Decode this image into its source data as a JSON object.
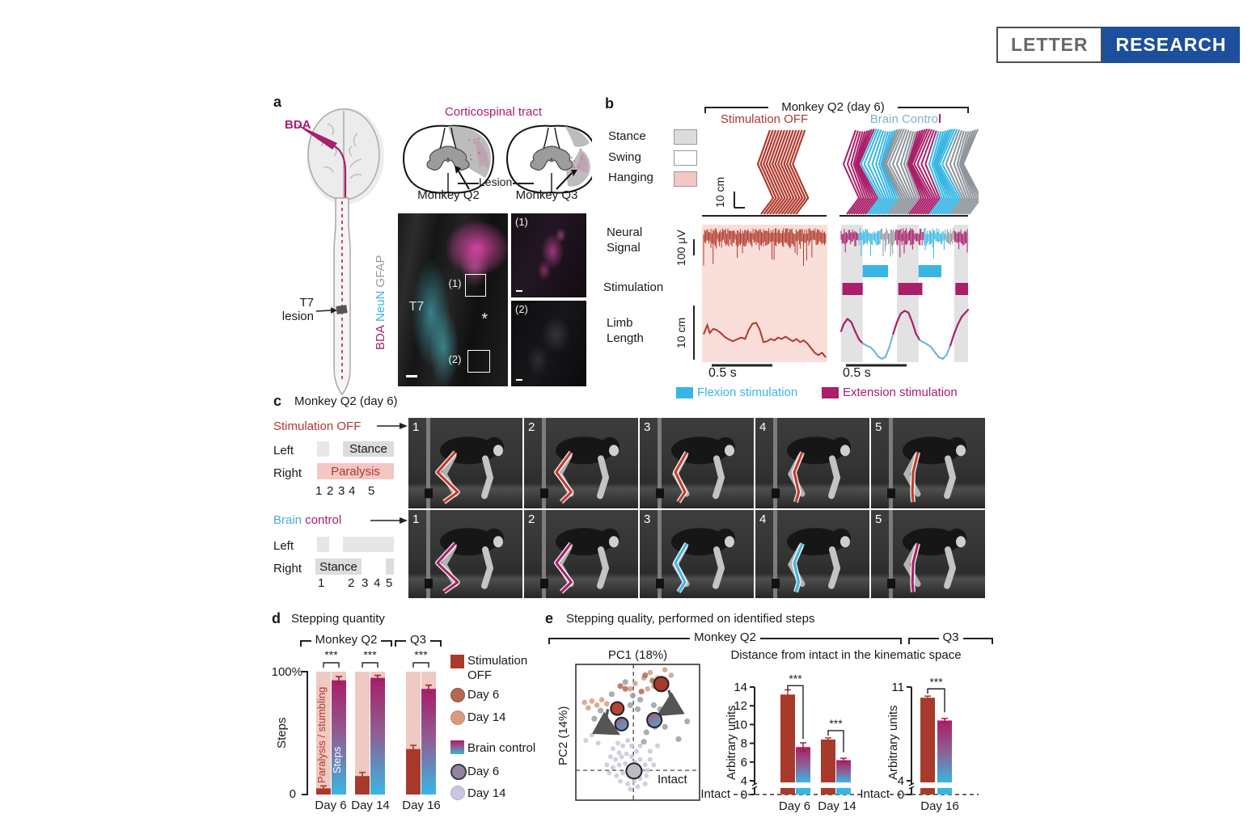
{
  "banner": {
    "letter": "LETTER",
    "research": "RESEARCH"
  },
  "colors": {
    "dark_red": "#b03a2e",
    "bar_red": "#a83a2c",
    "magenta": "#aa1f6a",
    "cyan": "#38b6e3",
    "gray_seg": "#8e959b",
    "pink_bg": "#f9ded9",
    "pink_box": "#f3c7c3",
    "stance_gray": "#dcdcdc",
    "band_gray": "#e2e2e2",
    "banner_blue": "#1c4f9c",
    "overlay_red": "#c3392c",
    "salmon": "#d89a83",
    "brown": "#b06a52",
    "lavender": "#c9c6dd",
    "purple_gray": "#94849f"
  },
  "panel_a": {
    "label": "a",
    "bda": "BDA",
    "cst_title": "Corticospinal tract",
    "monkey_q2": "Monkey Q2",
    "monkey_q3": "Monkey Q3",
    "lesion_label": "Lesion",
    "t7_line1": "T7",
    "t7_line2": "lesion",
    "stain_bda": "BDA",
    "stain_neun": "NeuN",
    "stain_gfap": "GFAP",
    "tissue_t7": "T7",
    "asterisk": "*",
    "box1": "(1)",
    "box2": "(2)",
    "inset1": "(1)",
    "inset2": "(2)"
  },
  "panel_b": {
    "label": "b",
    "title": "Monkey Q2 (day 6)",
    "col_off": "Stimulation OFF",
    "col_bc_part1": "Brain Contro",
    "col_bc_part2": "l",
    "gait_legend": [
      {
        "label": "Stance"
      },
      {
        "label": "Swing"
      },
      {
        "label": "Hanging"
      }
    ],
    "scale_stick": "10 cm",
    "scale_uv": "100 μV",
    "scale_cm": "10 cm",
    "row_neural_1": "Neural",
    "row_neural_2": "Signal",
    "row_stim": "Stimulation",
    "row_limb_1": "Limb",
    "row_limb_2": "Length",
    "scale_time_left": "0.5 s",
    "scale_time_right": "0.5 s",
    "legend_flexion": "Flexion stimulation",
    "legend_extension": "Extension stimulation",
    "stance_bands": [
      [
        0,
        0.17
      ],
      [
        0.44,
        0.61
      ],
      [
        0.89,
        1
      ]
    ],
    "neural_bounds": [
      0,
      0.14,
      0.31,
      0.43,
      0.65,
      0.82,
      0.89,
      1
    ],
    "neural_colors": [
      "magenta",
      "cyan",
      "gray_seg",
      "magenta",
      "cyan",
      "gray_seg",
      "magenta"
    ],
    "stim_cyan": [
      [
        0.17,
        0.37
      ],
      [
        0.61,
        0.79
      ]
    ],
    "stim_magenta": [
      [
        0.01,
        0.17
      ],
      [
        0.45,
        0.64
      ],
      [
        0.9,
        1
      ]
    ],
    "stick_right_groups": [
      "magenta",
      "cyan",
      "gray_seg",
      "magenta",
      "cyan",
      "gray_seg"
    ],
    "limb_left": [
      [
        0,
        0.45
      ],
      [
        0.03,
        0.25
      ],
      [
        0.05,
        0.42
      ],
      [
        0.08,
        0.33
      ],
      [
        0.11,
        0.36
      ],
      [
        0.14,
        0.42
      ],
      [
        0.17,
        0.5
      ],
      [
        0.2,
        0.55
      ],
      [
        0.24,
        0.6
      ],
      [
        0.28,
        0.55
      ],
      [
        0.31,
        0.52
      ],
      [
        0.34,
        0.55
      ],
      [
        0.37,
        0.35
      ],
      [
        0.4,
        0.22
      ],
      [
        0.43,
        0.2
      ],
      [
        0.46,
        0.35
      ],
      [
        0.49,
        0.62
      ],
      [
        0.52,
        0.6
      ],
      [
        0.55,
        0.55
      ],
      [
        0.58,
        0.58
      ],
      [
        0.61,
        0.52
      ],
      [
        0.64,
        0.55
      ],
      [
        0.67,
        0.5
      ],
      [
        0.7,
        0.55
      ],
      [
        0.73,
        0.6
      ],
      [
        0.76,
        0.55
      ],
      [
        0.79,
        0.62
      ],
      [
        0.82,
        0.58
      ],
      [
        0.85,
        0.65
      ],
      [
        0.88,
        0.75
      ],
      [
        0.91,
        0.85
      ],
      [
        0.94,
        0.9
      ],
      [
        0.97,
        0.85
      ],
      [
        1,
        0.95
      ]
    ],
    "limb_right": [
      [
        0,
        0.45
      ],
      [
        0.02,
        0.32
      ],
      [
        0.05,
        0.22
      ],
      [
        0.08,
        0.28
      ],
      [
        0.11,
        0.45
      ],
      [
        0.14,
        0.6
      ],
      [
        0.17,
        0.68
      ],
      [
        0.2,
        0.72
      ],
      [
        0.23,
        0.75
      ],
      [
        0.26,
        0.82
      ],
      [
        0.29,
        0.92
      ],
      [
        0.32,
        0.97
      ],
      [
        0.35,
        0.93
      ],
      [
        0.38,
        0.75
      ],
      [
        0.41,
        0.5
      ],
      [
        0.44,
        0.28
      ],
      [
        0.47,
        0.12
      ],
      [
        0.5,
        0.07
      ],
      [
        0.53,
        0.1
      ],
      [
        0.56,
        0.28
      ],
      [
        0.59,
        0.5
      ],
      [
        0.62,
        0.62
      ],
      [
        0.65,
        0.66
      ],
      [
        0.68,
        0.7
      ],
      [
        0.71,
        0.75
      ],
      [
        0.74,
        0.85
      ],
      [
        0.77,
        0.94
      ],
      [
        0.8,
        0.97
      ],
      [
        0.83,
        0.9
      ],
      [
        0.86,
        0.72
      ],
      [
        0.89,
        0.5
      ],
      [
        0.92,
        0.32
      ],
      [
        0.95,
        0.18
      ],
      [
        0.98,
        0.1
      ],
      [
        1,
        0.05
      ]
    ],
    "limb_right_cyan_ranges": [
      [
        0.18,
        0.4
      ],
      [
        0.62,
        0.87
      ]
    ]
  },
  "panel_c": {
    "label": "c",
    "title": "Monkey Q2 (day 6)",
    "off_title": "Stimulation OFF",
    "bc_title_1": "Brain ",
    "bc_title_2": "control",
    "left1": "Left",
    "right1": "Right",
    "stance1": "Stance",
    "paralysis": "Paralysis",
    "left2": "Left",
    "right2": "Right",
    "stance2": "Stance",
    "off_nums": [
      "1",
      "2",
      "3",
      "4",
      "5"
    ],
    "bc_nums": [
      "1",
      "2",
      "3",
      "4",
      "5"
    ],
    "frame_nums": [
      "1",
      "2",
      "3",
      "4",
      "5"
    ],
    "top_overlay_colors": [
      "overlay_red",
      "overlay_red",
      "overlay_red",
      "overlay_red",
      "overlay_red"
    ],
    "bottom_overlay_colors": [
      "magenta",
      "magenta",
      "cyan",
      "cyan",
      "magenta"
    ]
  },
  "panel_d": {
    "label": "d",
    "title": "Stepping quantity",
    "bracket_q2": "Monkey Q2",
    "bracket_q3": "Q3",
    "y_top": "100%",
    "y_bottom": "0",
    "ylabel": "Steps",
    "bar_text_paralysis": "Paralysis / stumbling",
    "bar_text_steps": "Steps",
    "x_labels": [
      "Day 6",
      "Day 14",
      "Day 16"
    ],
    "legend": {
      "off1": "Stimulation",
      "off2": "OFF",
      "off_day6": "Day 6",
      "off_day14": "Day 14",
      "bc": "Brain control",
      "bc_day6": "Day 6",
      "bc_day14": "Day 14"
    }
  },
  "panel_e": {
    "label": "e",
    "title": "Stepping quality, performed on identified steps",
    "bracket_q2": "Monkey Q2",
    "bracket_q3": "Q3",
    "pc1": "PC1 (18%)",
    "pc2": "PC2 (14%)",
    "intact_scatter": "Intact",
    "dist_title": "Distance from intact in the kinematic space",
    "arbitrary_units_q2": "Arbitrary units",
    "arbitrary_units_q3": "Arbitrary units",
    "intact_q2": "Intact",
    "intact_q3": "Intact",
    "zero_q2": "0",
    "zero_q3": "0",
    "q2_xlabels": [
      "Day 6",
      "Day 14"
    ],
    "q3_xlabel": "Day 16"
  },
  "chart_data": [
    {
      "id": "panel_d_bar",
      "type": "bar",
      "title": "Stepping quantity",
      "ylabel": "Steps",
      "ylim": [
        0,
        100
      ],
      "yticks": [
        "0",
        "100%"
      ],
      "categories": [
        "Day 6",
        "Day 14",
        "Day 16"
      ],
      "series": [
        {
          "name": "Stimulation OFF (steps %)",
          "values": [
            5,
            15,
            37
          ],
          "errors": [
            2,
            3,
            3
          ]
        },
        {
          "name": "Brain control (steps %)",
          "values": [
            93,
            95,
            86
          ],
          "errors": [
            3,
            2,
            3
          ]
        }
      ],
      "significance": [
        "***",
        "***",
        "***"
      ],
      "brackets": {
        "Monkey Q2": [
          "Day 6",
          "Day 14"
        ],
        "Q3": [
          "Day 16"
        ]
      },
      "annotations": [
        "Paralysis / stumbling",
        "Steps"
      ]
    },
    {
      "id": "panel_e_pca",
      "type": "scatter",
      "title": "PC1 (18%)",
      "xlabel": "PC1 (18%)",
      "ylabel": "PC2 (14%)",
      "clusters": [
        {
          "name": "intact-steps",
          "color": "#c9c6dd",
          "r": 3,
          "points": [
            [
              0.3,
              0.62
            ],
            [
              0.34,
              0.58
            ],
            [
              0.38,
              0.6
            ],
            [
              0.42,
              0.56
            ],
            [
              0.45,
              0.6
            ],
            [
              0.35,
              0.65
            ],
            [
              0.28,
              0.68
            ],
            [
              0.32,
              0.7
            ],
            [
              0.37,
              0.68
            ],
            [
              0.41,
              0.66
            ],
            [
              0.45,
              0.68
            ],
            [
              0.49,
              0.64
            ],
            [
              0.52,
              0.6
            ],
            [
              0.25,
              0.74
            ],
            [
              0.3,
              0.76
            ],
            [
              0.35,
              0.74
            ],
            [
              0.4,
              0.73
            ],
            [
              0.44,
              0.76
            ],
            [
              0.48,
              0.72
            ],
            [
              0.52,
              0.7
            ],
            [
              0.56,
              0.74
            ],
            [
              0.6,
              0.7
            ],
            [
              0.27,
              0.8
            ],
            [
              0.33,
              0.82
            ],
            [
              0.38,
              0.8
            ],
            [
              0.43,
              0.82
            ],
            [
              0.48,
              0.8
            ],
            [
              0.53,
              0.78
            ],
            [
              0.58,
              0.78
            ],
            [
              0.63,
              0.74
            ],
            [
              0.36,
              0.86
            ],
            [
              0.42,
              0.88
            ],
            [
              0.47,
              0.86
            ],
            [
              0.52,
              0.84
            ],
            [
              0.57,
              0.82
            ],
            [
              0.44,
              0.92
            ],
            [
              0.5,
              0.9
            ],
            [
              0.56,
              0.88
            ],
            [
              0.08,
              0.56
            ],
            [
              0.13,
              0.52
            ],
            [
              0.18,
              0.58
            ],
            [
              0.6,
              0.64
            ],
            [
              0.66,
              0.6
            ]
          ]
        },
        {
          "name": "gray-steps",
          "color": "#9aa0a8",
          "r": 3.6,
          "points": [
            [
              0.4,
              0.13
            ],
            [
              0.29,
              0.22
            ],
            [
              0.52,
              0.26
            ],
            [
              0.63,
              0.3
            ],
            [
              0.68,
              0.33
            ],
            [
              0.66,
              0.4
            ],
            [
              0.64,
              0.46
            ],
            [
              0.6,
              0.44
            ],
            [
              0.57,
              0.5
            ],
            [
              0.9,
              0.42
            ],
            [
              0.83,
              0.55
            ],
            [
              0.15,
              0.4
            ],
            [
              0.2,
              0.34
            ],
            [
              0.46,
              0.23
            ],
            [
              0.5,
              0.33
            ],
            [
              0.44,
              0.3
            ],
            [
              0.72,
              0.46
            ],
            [
              0.55,
              0.57
            ]
          ]
        },
        {
          "name": "off-day14-steps",
          "color": "#d89a83",
          "r": 3.3,
          "points": [
            [
              0.13,
              0.27
            ],
            [
              0.17,
              0.3
            ],
            [
              0.21,
              0.26
            ],
            [
              0.25,
              0.29
            ],
            [
              0.1,
              0.32
            ],
            [
              0.44,
              0.18
            ],
            [
              0.48,
              0.14
            ],
            [
              0.55,
              0.1
            ],
            [
              0.6,
              0.06
            ],
            [
              0.66,
              0.1
            ],
            [
              0.72,
              0.04
            ],
            [
              0.63,
              0.16
            ],
            [
              0.7,
              0.14
            ],
            [
              0.58,
              0.18
            ],
            [
              0.07,
              0.28
            ],
            [
              0.77,
              0.08
            ]
          ]
        },
        {
          "name": "off-day6-steps",
          "color": "#b06a52",
          "r": 3.6,
          "points": [
            [
              0.36,
              0.16
            ],
            [
              0.4,
              0.18
            ],
            [
              0.56,
              0.08
            ],
            [
              0.62,
              0.12
            ],
            [
              0.53,
              0.2
            ]
          ]
        }
      ],
      "centroids": [
        {
          "name": "stim-off-day6",
          "color": "#a83a2c",
          "x": 0.69,
          "y": 0.145,
          "r": 9
        },
        {
          "name": "stim-off-day14",
          "color": "#b8432f",
          "x": 0.335,
          "y": 0.325,
          "r": 8
        },
        {
          "name": "brain-control-day6",
          "gradient": true,
          "x": 0.635,
          "y": 0.41,
          "r": 9
        },
        {
          "name": "brain-control-day14",
          "gradient": true,
          "x": 0.37,
          "y": 0.44,
          "r": 8
        },
        {
          "name": "intact",
          "color": "#b9bcc0",
          "x": 0.47,
          "y": 0.785,
          "r": 9.5,
          "label": "Intact"
        }
      ],
      "arrows": [
        {
          "from": [
            0.75,
            0.19
          ],
          "ctrl": [
            0.8,
            0.3
          ],
          "to": [
            0.69,
            0.36
          ]
        },
        {
          "from": [
            0.26,
            0.33
          ],
          "ctrl": [
            0.22,
            0.45
          ],
          "to": [
            0.32,
            0.5
          ]
        }
      ]
    },
    {
      "id": "panel_e_q2",
      "type": "bar",
      "title": "Distance from intact in the kinematic space",
      "ylabel": "Arbitrary units",
      "ylim": [
        0,
        14
      ],
      "axis_break": [
        0,
        4
      ],
      "yticks": [
        14,
        12,
        10,
        8,
        6,
        4,
        0
      ],
      "categories": [
        "Day 6",
        "Day 14"
      ],
      "series": [
        {
          "name": "Stimulation OFF",
          "values": [
            13.2,
            8.4
          ],
          "errors": [
            0.5,
            0.15
          ]
        },
        {
          "name": "Brain control",
          "values": [
            7.6,
            6.2
          ],
          "errors": [
            0.45,
            0.2
          ]
        }
      ],
      "significance": [
        "***",
        "***"
      ],
      "baseline_label": "Intact"
    },
    {
      "id": "panel_e_q3",
      "type": "bar",
      "title": "Distance from intact in the kinematic space",
      "ylabel": "Arbitrary units",
      "ylim": [
        0,
        11
      ],
      "axis_break": [
        0,
        4
      ],
      "yticks": [
        11,
        4,
        0
      ],
      "categories": [
        "Day 16"
      ],
      "series": [
        {
          "name": "Stimulation OFF",
          "values": [
            10.2
          ],
          "errors": [
            0.12
          ]
        },
        {
          "name": "Brain control",
          "values": [
            8.5
          ],
          "errors": [
            0.15
          ]
        }
      ],
      "significance": [
        "***"
      ],
      "baseline_label": "Intact"
    }
  ]
}
